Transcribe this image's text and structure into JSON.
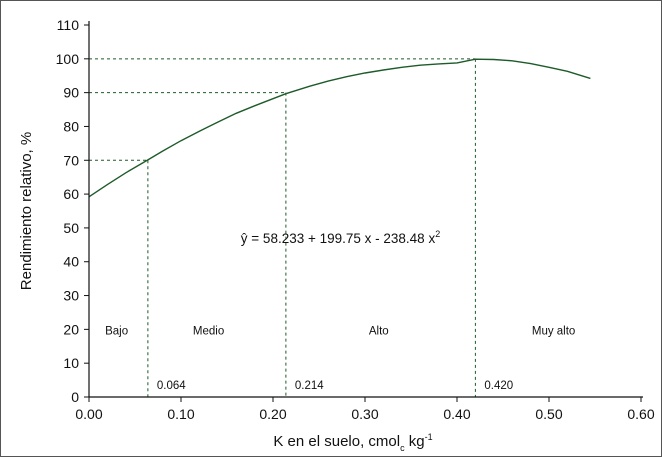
{
  "chart_data": {
    "type": "line",
    "xlabel": "K en el suelo, cmol",
    "xlabel_sub": "c",
    "xlabel_unit": " kg",
    "xlabel_sup": "-1",
    "ylabel": "Rendimiento relativo, %",
    "xlim": [
      0,
      0.6
    ],
    "ylim": [
      0,
      110
    ],
    "x_ticks": [
      0,
      0.1,
      0.2,
      0.3,
      0.4,
      0.5,
      0.6
    ],
    "x_tick_labels": [
      "0.00",
      "0.10",
      "0.20",
      "0.30",
      "0.40",
      "0.50",
      "0.60"
    ],
    "y_ticks": [
      0,
      10,
      20,
      30,
      40,
      50,
      60,
      70,
      80,
      90,
      100,
      110
    ],
    "y_tick_labels": [
      "0",
      "10",
      "20",
      "30",
      "40",
      "50",
      "60",
      "70",
      "80",
      "90",
      "100",
      "110"
    ],
    "grid": false,
    "line_color": "#1e5b2a",
    "curve": {
      "x": [
        0.0,
        0.02,
        0.04,
        0.064,
        0.08,
        0.1,
        0.12,
        0.14,
        0.16,
        0.18,
        0.2,
        0.214,
        0.24,
        0.26,
        0.28,
        0.3,
        0.32,
        0.34,
        0.36,
        0.38,
        0.4,
        0.42,
        0.44,
        0.46,
        0.48,
        0.5,
        0.52,
        0.545
      ],
      "y": [
        59.2,
        62.8,
        66.3,
        70.1,
        72.7,
        75.8,
        78.6,
        81.3,
        83.9,
        86.1,
        88.2,
        89.7,
        91.9,
        93.4,
        94.7,
        95.8,
        96.7,
        97.5,
        98.1,
        98.5,
        98.8,
        99.9,
        99.8,
        99.4,
        98.6,
        97.5,
        96.3,
        94.2
      ]
    },
    "guides": [
      {
        "x": 0.064,
        "y": 70,
        "label": "0.064"
      },
      {
        "x": 0.214,
        "y": 90,
        "label": "0.214"
      },
      {
        "x": 0.42,
        "y": 100,
        "label": "0.420"
      }
    ],
    "zones": [
      {
        "label": "Bajo",
        "x": 0.03
      },
      {
        "label": "Medio",
        "x": 0.13
      },
      {
        "label": "Alto",
        "x": 0.315
      },
      {
        "label": "Muy alto",
        "x": 0.505
      }
    ],
    "equation": "ŷ = 58.233 + 199.75 x - 238.48 x",
    "equation_sup": "2"
  }
}
